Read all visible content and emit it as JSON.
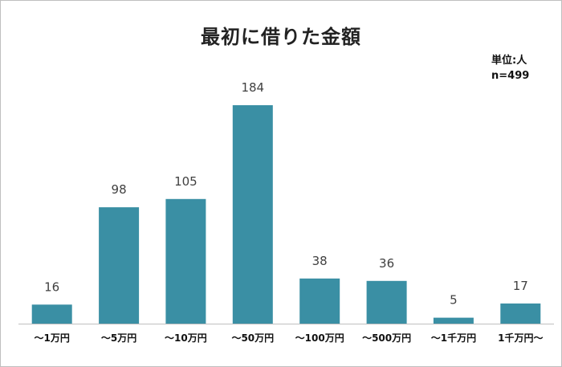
{
  "title": "最初に借りた金額",
  "unit_label": "単位:人",
  "n_label": "n=499",
  "colors": {
    "bar": "#3a8fa4",
    "axis": "#bfbfbf"
  },
  "chart_data": {
    "type": "bar",
    "title": "最初に借りた金額",
    "categories": [
      "～1万円",
      "～5万円",
      "～10万円",
      "～50万円",
      "～100万円",
      "～500万円",
      "～1千万円",
      "1千万円～"
    ],
    "series": [
      {
        "values": [
          16,
          98,
          105,
          184,
          38,
          36,
          5,
          17
        ]
      }
    ],
    "ylim": [
      0,
      200
    ],
    "grid": false,
    "data_labels": true,
    "legend": "none"
  }
}
